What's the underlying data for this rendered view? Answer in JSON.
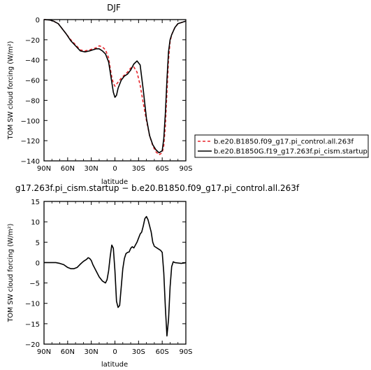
{
  "chart_data": [
    {
      "type": "line",
      "title": "DJF",
      "xlabel": "latitude",
      "ylabel": "TOM SW cloud forcing (W/m²)",
      "xlim": [
        90,
        -90
      ],
      "ylim": [
        -140,
        0
      ],
      "x_tick_values": [
        90,
        60,
        30,
        0,
        -30,
        -60,
        -90
      ],
      "x_tick_labels": [
        "90N",
        "60N",
        "30N",
        "0",
        "30S",
        "60S",
        "90S"
      ],
      "y_tick_values": [
        0,
        -20,
        -40,
        -60,
        -80,
        -100,
        -120,
        -140
      ],
      "y_tick_labels": [
        "0",
        "−20",
        "−40",
        "−60",
        "−80",
        "−100",
        "−120",
        "−140"
      ],
      "legend_position": "right",
      "series": [
        {
          "name": "b.e20.B1850.f09_g17.pi_control.all.263f",
          "color": "#e8242a",
          "dash": "dashed",
          "x": [
            90,
            82,
            78,
            72,
            68,
            62,
            56,
            50,
            44,
            38,
            32,
            28,
            24,
            20,
            16,
            12,
            8,
            6,
            4,
            2,
            0,
            -2,
            -4,
            -8,
            -12,
            -16,
            -20,
            -24,
            -28,
            -32,
            -36,
            -40,
            -44,
            -48,
            -52,
            -56,
            -60,
            -62,
            -64,
            -66,
            -68,
            -70,
            -72,
            -76,
            -80,
            -84,
            -88,
            -90
          ],
          "y": [
            0,
            -0.5,
            -1.5,
            -4,
            -8,
            -14,
            -20,
            -25,
            -30,
            -31,
            -30,
            -29,
            -28,
            -26,
            -27,
            -30,
            -38,
            -48,
            -57,
            -63,
            -66,
            -64,
            -62,
            -58,
            -55,
            -52,
            -48,
            -47,
            -52,
            -65,
            -83,
            -100,
            -115,
            -125,
            -131,
            -134,
            -132,
            -125,
            -105,
            -72,
            -40,
            -22,
            -15,
            -8,
            -4,
            -3,
            -2,
            -1.5
          ]
        },
        {
          "name": "b.e20.B1850G.f19_g17.263f.pi_cism.startup",
          "color": "#000000",
          "dash": "solid",
          "x": [
            90,
            82,
            78,
            72,
            68,
            62,
            56,
            50,
            44,
            38,
            32,
            28,
            24,
            20,
            16,
            12,
            8,
            6,
            4,
            2,
            0,
            -2,
            -4,
            -8,
            -12,
            -16,
            -20,
            -24,
            -28,
            -32,
            -36,
            -40,
            -44,
            -48,
            -52,
            -56,
            -60,
            -62,
            -64,
            -66,
            -68,
            -70,
            -72,
            -76,
            -80,
            -84,
            -88,
            -90
          ],
          "y": [
            0,
            -0.5,
            -1.5,
            -4,
            -8,
            -14,
            -21,
            -26,
            -31,
            -32,
            -31,
            -30,
            -29,
            -29,
            -31,
            -34,
            -42,
            -52,
            -62,
            -72,
            -77,
            -75,
            -68,
            -60,
            -56,
            -54,
            -50,
            -44,
            -41,
            -45,
            -70,
            -98,
            -115,
            -124,
            -129,
            -132,
            -130,
            -118,
            -93,
            -60,
            -32,
            -20,
            -15,
            -8,
            -4,
            -3,
            -2,
            -1.5
          ]
        }
      ]
    },
    {
      "type": "line",
      "title": "g17.263f.pi_cism.startup − b.e20.B1850.f09_g17.pi_control.all.263f",
      "xlabel": "latitude",
      "ylabel": "TOM SW cloud forcing (W/m²)",
      "xlim": [
        90,
        -90
      ],
      "ylim": [
        -20,
        15
      ],
      "x_tick_values": [
        90,
        60,
        30,
        0,
        -30,
        -60,
        -90
      ],
      "x_tick_labels": [
        "90N",
        "60N",
        "30N",
        "0",
        "30S",
        "60S",
        "90S"
      ],
      "y_tick_values": [
        15,
        10,
        5,
        0,
        -5,
        -10,
        -15,
        -20
      ],
      "y_tick_labels": [
        "15",
        "10",
        "5",
        "0",
        "−5",
        "−10",
        "−15",
        "−20"
      ],
      "series": [
        {
          "name": "",
          "color": "#000000",
          "dash": "solid",
          "x": [
            90,
            75,
            70,
            65,
            60,
            56,
            52,
            48,
            44,
            40,
            36,
            34,
            32,
            30,
            28,
            24,
            20,
            16,
            12,
            10,
            8,
            6,
            4,
            2,
            0,
            -2,
            -4,
            -6,
            -8,
            -10,
            -12,
            -14,
            -16,
            -18,
            -20,
            -22,
            -24,
            -26,
            -28,
            -30,
            -32,
            -34,
            -36,
            -38,
            -40,
            -42,
            -44,
            -46,
            -48,
            -50,
            -54,
            -58,
            -60,
            -62,
            -64,
            -66,
            -68,
            -70,
            -72,
            -74,
            -76,
            -80,
            -84,
            -88,
            -90
          ],
          "y": [
            0,
            0,
            -0.2,
            -0.5,
            -1.2,
            -1.5,
            -1.5,
            -1.2,
            -0.4,
            0.3,
            0.8,
            1.2,
            1.0,
            0.5,
            -0.5,
            -2.0,
            -3.5,
            -4.5,
            -5.0,
            -4.2,
            -2.0,
            1.5,
            4.3,
            3.5,
            -2.0,
            -9.5,
            -11.0,
            -10.5,
            -6.0,
            -1.5,
            1.0,
            2.2,
            2.5,
            2.6,
            3.5,
            3.9,
            3.6,
            4.3,
            5.0,
            6.0,
            7.0,
            7.5,
            9.0,
            10.8,
            11.3,
            10.5,
            9.0,
            7.5,
            5.0,
            4.0,
            3.5,
            3.0,
            2.5,
            -2.5,
            -11.0,
            -18.0,
            -14.0,
            -6.0,
            -1.0,
            0.2,
            0.0,
            -0.1,
            -0.2,
            -0.1,
            0.0
          ]
        }
      ]
    }
  ]
}
